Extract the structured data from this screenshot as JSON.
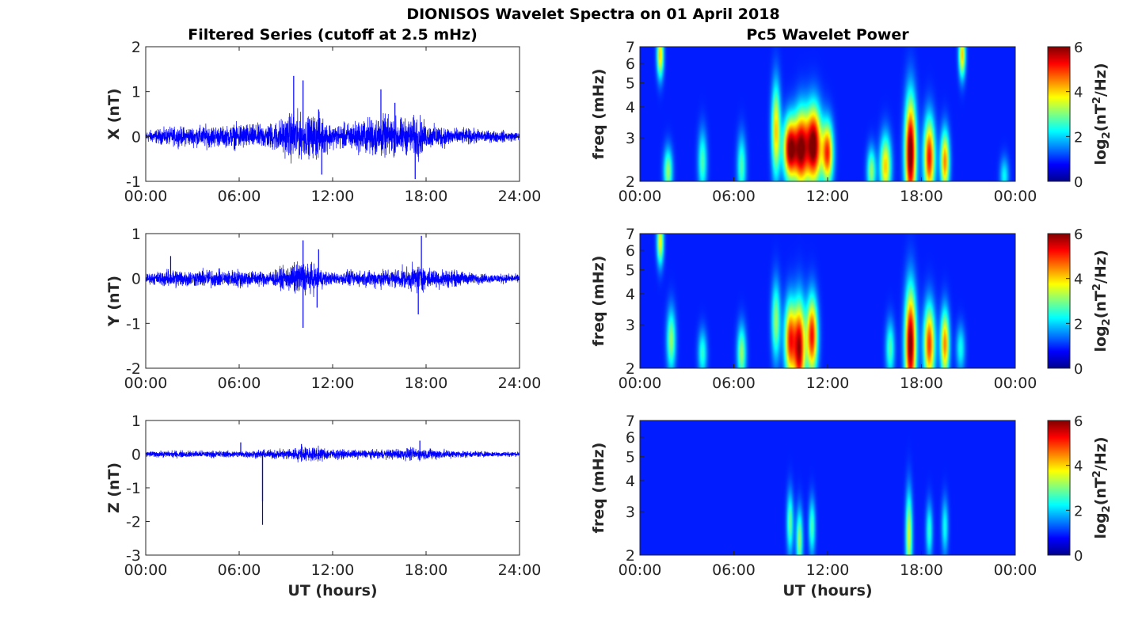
{
  "suptitle": "DIONISOS Wavelet Spectra on 01 April 2018",
  "left_title": "Filtered Series (cutoff at 2.5 mHz)",
  "right_title": "Pc5 Wavelet Power",
  "x_axis_label": "UT (hours)",
  "freq_label": "freq (mHz)",
  "colorbar_label_prefix": "log",
  "colorbar_label_sub": "2",
  "colorbar_label_mid": "(nT",
  "colorbar_label_sup": "2",
  "colorbar_label_suffix": "/Hz)",
  "chart_data": [
    {
      "type": "line",
      "component": "X",
      "ylabel": "X (nT)",
      "ylim": [
        -1,
        2
      ],
      "yticks": [
        "2",
        "1",
        "0",
        "-1"
      ],
      "xticks": [
        "00:00",
        "06:00",
        "12:00",
        "18:00",
        "24:00"
      ],
      "xlim_hours": [
        0,
        24
      ],
      "series_color": "#0000ff",
      "envelope": {
        "hours": [
          0,
          1,
          2,
          3,
          4,
          5,
          6,
          7,
          8,
          9,
          9.5,
          10,
          10.5,
          11,
          11.5,
          12,
          13,
          14,
          15,
          16,
          17,
          17.5,
          18,
          19,
          20,
          21,
          22,
          23,
          24
        ],
        "amplitude_nT": [
          0.15,
          0.2,
          0.25,
          0.25,
          0.3,
          0.25,
          0.35,
          0.3,
          0.35,
          0.5,
          0.7,
          0.55,
          0.5,
          0.6,
          0.45,
          0.3,
          0.35,
          0.45,
          0.55,
          0.5,
          0.45,
          0.6,
          0.3,
          0.3,
          0.2,
          0.2,
          0.15,
          0.15,
          0.1
        ]
      },
      "spikes": [
        {
          "hour": 9.5,
          "value": 1.35
        },
        {
          "hour": 10.1,
          "value": 1.25
        },
        {
          "hour": 11.1,
          "value": 0.6
        },
        {
          "hour": 11.3,
          "value": -0.85
        },
        {
          "hour": 15.1,
          "value": 1.05
        },
        {
          "hour": 17.3,
          "value": -0.95
        },
        {
          "hour": 16.0,
          "value": 0.75
        }
      ]
    },
    {
      "type": "line",
      "component": "Y",
      "ylabel": "Y (nT)",
      "ylim": [
        -2,
        1
      ],
      "yticks": [
        "1",
        "0",
        "-1",
        "-2"
      ],
      "xticks": [
        "00:00",
        "06:00",
        "12:00",
        "18:00",
        "24:00"
      ],
      "xlim_hours": [
        0,
        24
      ],
      "series_color": "#0000ff",
      "envelope": {
        "hours": [
          0,
          1,
          2,
          3,
          4,
          5,
          6,
          7,
          8,
          9,
          9.5,
          10,
          10.5,
          11,
          11.5,
          12,
          13,
          14,
          15,
          16,
          17,
          17.5,
          18,
          19,
          20,
          21,
          22,
          23,
          24
        ],
        "amplitude_nT": [
          0.12,
          0.2,
          0.25,
          0.2,
          0.25,
          0.2,
          0.25,
          0.2,
          0.2,
          0.3,
          0.4,
          0.45,
          0.4,
          0.35,
          0.2,
          0.15,
          0.2,
          0.2,
          0.25,
          0.25,
          0.3,
          0.4,
          0.25,
          0.25,
          0.2,
          0.15,
          0.12,
          0.12,
          0.1
        ]
      },
      "spikes": [
        {
          "hour": 10.1,
          "value": -1.1
        },
        {
          "hour": 10.1,
          "value": 0.85
        },
        {
          "hour": 11.1,
          "value": 0.65
        },
        {
          "hour": 17.7,
          "value": 0.95
        },
        {
          "hour": 17.5,
          "value": -0.8
        },
        {
          "hour": 11.0,
          "value": -0.65
        },
        {
          "hour": 1.6,
          "value": 0.5
        }
      ]
    },
    {
      "type": "line",
      "component": "Z",
      "ylabel": "Z (nT)",
      "ylim": [
        -3,
        1
      ],
      "yticks": [
        "1",
        "0",
        "-1",
        "-2",
        "-3"
      ],
      "xticks": [
        "00:00",
        "06:00",
        "12:00",
        "18:00",
        "24:00"
      ],
      "xlim_hours": [
        0,
        24
      ],
      "series_color": "#0000ff",
      "envelope": {
        "hours": [
          0,
          2,
          4,
          6,
          8,
          9,
          10,
          11,
          12,
          13,
          14,
          15,
          16,
          17,
          18,
          19,
          20,
          22,
          24
        ],
        "amplitude_nT": [
          0.1,
          0.12,
          0.12,
          0.12,
          0.15,
          0.2,
          0.25,
          0.25,
          0.18,
          0.15,
          0.15,
          0.15,
          0.18,
          0.22,
          0.2,
          0.18,
          0.12,
          0.1,
          0.08
        ]
      },
      "spikes": [
        {
          "hour": 7.5,
          "value": -2.1
        },
        {
          "hour": 7.5,
          "value": -1.4
        },
        {
          "hour": 6.1,
          "value": 0.35
        },
        {
          "hour": 10.0,
          "value": 0.3
        },
        {
          "hour": 17.6,
          "value": 0.4
        }
      ]
    },
    {
      "type": "heatmap",
      "component": "X",
      "title": "Pc5 Wavelet Power",
      "ylabel": "freq (mHz)",
      "y_scale": "log",
      "ylim_mHz": [
        2,
        7
      ],
      "yticks": [
        "2",
        "3",
        "4",
        "5",
        "6",
        "7"
      ],
      "xticks": [
        "00:00",
        "06:00",
        "12:00",
        "18:00",
        "00:00"
      ],
      "xlim_hours": [
        0,
        24
      ],
      "colormap": "jet",
      "clim": [
        0,
        6
      ],
      "colorbar_ticks": [
        "0",
        "2",
        "4",
        "6"
      ],
      "blobs": [
        {
          "t": 9.6,
          "f": 2.7,
          "power": 5.6,
          "dt": 0.3,
          "dlogf": 0.2
        },
        {
          "t": 10.3,
          "f": 2.7,
          "power": 5.2,
          "dt": 0.3,
          "dlogf": 0.25
        },
        {
          "t": 11.1,
          "f": 2.8,
          "power": 6.0,
          "dt": 0.35,
          "dlogf": 0.25
        },
        {
          "t": 12.0,
          "f": 2.6,
          "power": 4.5,
          "dt": 0.25,
          "dlogf": 0.2
        },
        {
          "t": 17.3,
          "f": 2.6,
          "power": 6.0,
          "dt": 0.25,
          "dlogf": 0.35
        },
        {
          "t": 18.5,
          "f": 2.5,
          "power": 4.8,
          "dt": 0.25,
          "dlogf": 0.25
        },
        {
          "t": 19.5,
          "f": 2.4,
          "power": 4.0,
          "dt": 0.2,
          "dlogf": 0.2
        },
        {
          "t": 8.7,
          "f": 3.2,
          "power": 3.5,
          "dt": 0.2,
          "dlogf": 0.3
        },
        {
          "t": 15.7,
          "f": 2.3,
          "power": 3.5,
          "dt": 0.25,
          "dlogf": 0.2
        },
        {
          "t": 14.8,
          "f": 2.2,
          "power": 2.5,
          "dt": 0.2,
          "dlogf": 0.15
        },
        {
          "t": 1.8,
          "f": 2.2,
          "power": 2.5,
          "dt": 0.2,
          "dlogf": 0.15
        },
        {
          "t": 4.0,
          "f": 2.4,
          "power": 2.0,
          "dt": 0.2,
          "dlogf": 0.2
        },
        {
          "t": 6.5,
          "f": 2.3,
          "power": 2.0,
          "dt": 0.2,
          "dlogf": 0.2
        },
        {
          "t": 1.3,
          "f": 6.5,
          "power": 3.5,
          "dt": 0.15,
          "dlogf": 0.15
        },
        {
          "t": 20.6,
          "f": 6.5,
          "power": 3.5,
          "dt": 0.15,
          "dlogf": 0.15
        },
        {
          "t": 23.3,
          "f": 2.1,
          "power": 1.5,
          "dt": 0.2,
          "dlogf": 0.12
        }
      ]
    },
    {
      "type": "heatmap",
      "component": "Y",
      "ylabel": "freq (mHz)",
      "y_scale": "log",
      "ylim_mHz": [
        2,
        7
      ],
      "yticks": [
        "2",
        "3",
        "4",
        "5",
        "6",
        "7"
      ],
      "xticks": [
        "00:00",
        "06:00",
        "12:00",
        "18:00",
        "00:00"
      ],
      "xlim_hours": [
        0,
        24
      ],
      "colormap": "jet",
      "clim": [
        0,
        6
      ],
      "colorbar_ticks": [
        "0",
        "2",
        "4",
        "6"
      ],
      "blobs": [
        {
          "t": 9.6,
          "f": 2.6,
          "power": 4.5,
          "dt": 0.25,
          "dlogf": 0.25
        },
        {
          "t": 10.2,
          "f": 2.4,
          "power": 5.3,
          "dt": 0.25,
          "dlogf": 0.3
        },
        {
          "t": 11.0,
          "f": 2.7,
          "power": 4.8,
          "dt": 0.25,
          "dlogf": 0.25
        },
        {
          "t": 17.3,
          "f": 2.5,
          "power": 5.8,
          "dt": 0.25,
          "dlogf": 0.35
        },
        {
          "t": 18.5,
          "f": 2.5,
          "power": 4.5,
          "dt": 0.25,
          "dlogf": 0.25
        },
        {
          "t": 19.5,
          "f": 2.5,
          "power": 4.0,
          "dt": 0.2,
          "dlogf": 0.22
        },
        {
          "t": 2.0,
          "f": 2.6,
          "power": 2.5,
          "dt": 0.2,
          "dlogf": 0.2
        },
        {
          "t": 6.5,
          "f": 2.3,
          "power": 2.5,
          "dt": 0.2,
          "dlogf": 0.18
        },
        {
          "t": 4.0,
          "f": 2.3,
          "power": 1.8,
          "dt": 0.2,
          "dlogf": 0.15
        },
        {
          "t": 8.7,
          "f": 3.1,
          "power": 2.5,
          "dt": 0.2,
          "dlogf": 0.25
        },
        {
          "t": 16.0,
          "f": 2.4,
          "power": 2.0,
          "dt": 0.2,
          "dlogf": 0.18
        },
        {
          "t": 1.3,
          "f": 6.5,
          "power": 3.2,
          "dt": 0.15,
          "dlogf": 0.15
        },
        {
          "t": 20.5,
          "f": 2.4,
          "power": 1.6,
          "dt": 0.2,
          "dlogf": 0.15
        }
      ]
    },
    {
      "type": "heatmap",
      "component": "Z",
      "ylabel": "freq (mHz)",
      "y_scale": "log",
      "ylim_mHz": [
        2,
        7
      ],
      "yticks": [
        "2",
        "3",
        "4",
        "5",
        "6",
        "7"
      ],
      "xticks": [
        "00:00",
        "06:00",
        "12:00",
        "18:00",
        "00:00"
      ],
      "xlim_hours": [
        0,
        24
      ],
      "colormap": "jet",
      "clim": [
        0,
        6
      ],
      "colorbar_ticks": [
        "0",
        "2",
        "4",
        "6"
      ],
      "blobs": [
        {
          "t": 9.6,
          "f": 2.7,
          "power": 2.2,
          "dt": 0.15,
          "dlogf": 0.2
        },
        {
          "t": 10.2,
          "f": 2.3,
          "power": 2.5,
          "dt": 0.15,
          "dlogf": 0.2
        },
        {
          "t": 11.0,
          "f": 2.6,
          "power": 2.0,
          "dt": 0.15,
          "dlogf": 0.18
        },
        {
          "t": 17.2,
          "f": 2.4,
          "power": 3.0,
          "dt": 0.15,
          "dlogf": 0.28
        },
        {
          "t": 18.5,
          "f": 2.5,
          "power": 1.8,
          "dt": 0.15,
          "dlogf": 0.18
        },
        {
          "t": 19.5,
          "f": 2.6,
          "power": 1.6,
          "dt": 0.15,
          "dlogf": 0.18
        }
      ]
    }
  ]
}
